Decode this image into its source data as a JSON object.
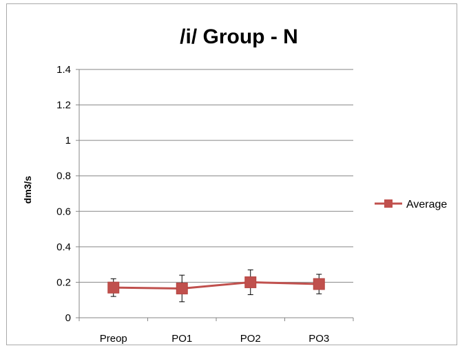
{
  "chart_data": {
    "type": "line",
    "title": "/i/ Group - N",
    "xlabel": "",
    "ylabel": "dm3/s",
    "categories": [
      "Preop",
      "PO1",
      "PO2",
      "PO3"
    ],
    "ylim": [
      0,
      1.4
    ],
    "yticks": [
      0,
      0.2,
      0.4,
      0.6,
      0.8,
      1,
      1.2,
      1.4
    ],
    "ytick_labels": [
      "0",
      "0.2",
      "0.4",
      "0.6",
      "0.8",
      "1",
      "1.2",
      "1.4"
    ],
    "grid": true,
    "legend_position": "right",
    "series": [
      {
        "name": "Average",
        "color": "#c0504d",
        "marker": "square",
        "values": [
          0.17,
          0.165,
          0.2,
          0.19
        ],
        "error_low": [
          0.12,
          0.09,
          0.13,
          0.135
        ],
        "error_high": [
          0.22,
          0.24,
          0.27,
          0.245
        ]
      }
    ]
  }
}
